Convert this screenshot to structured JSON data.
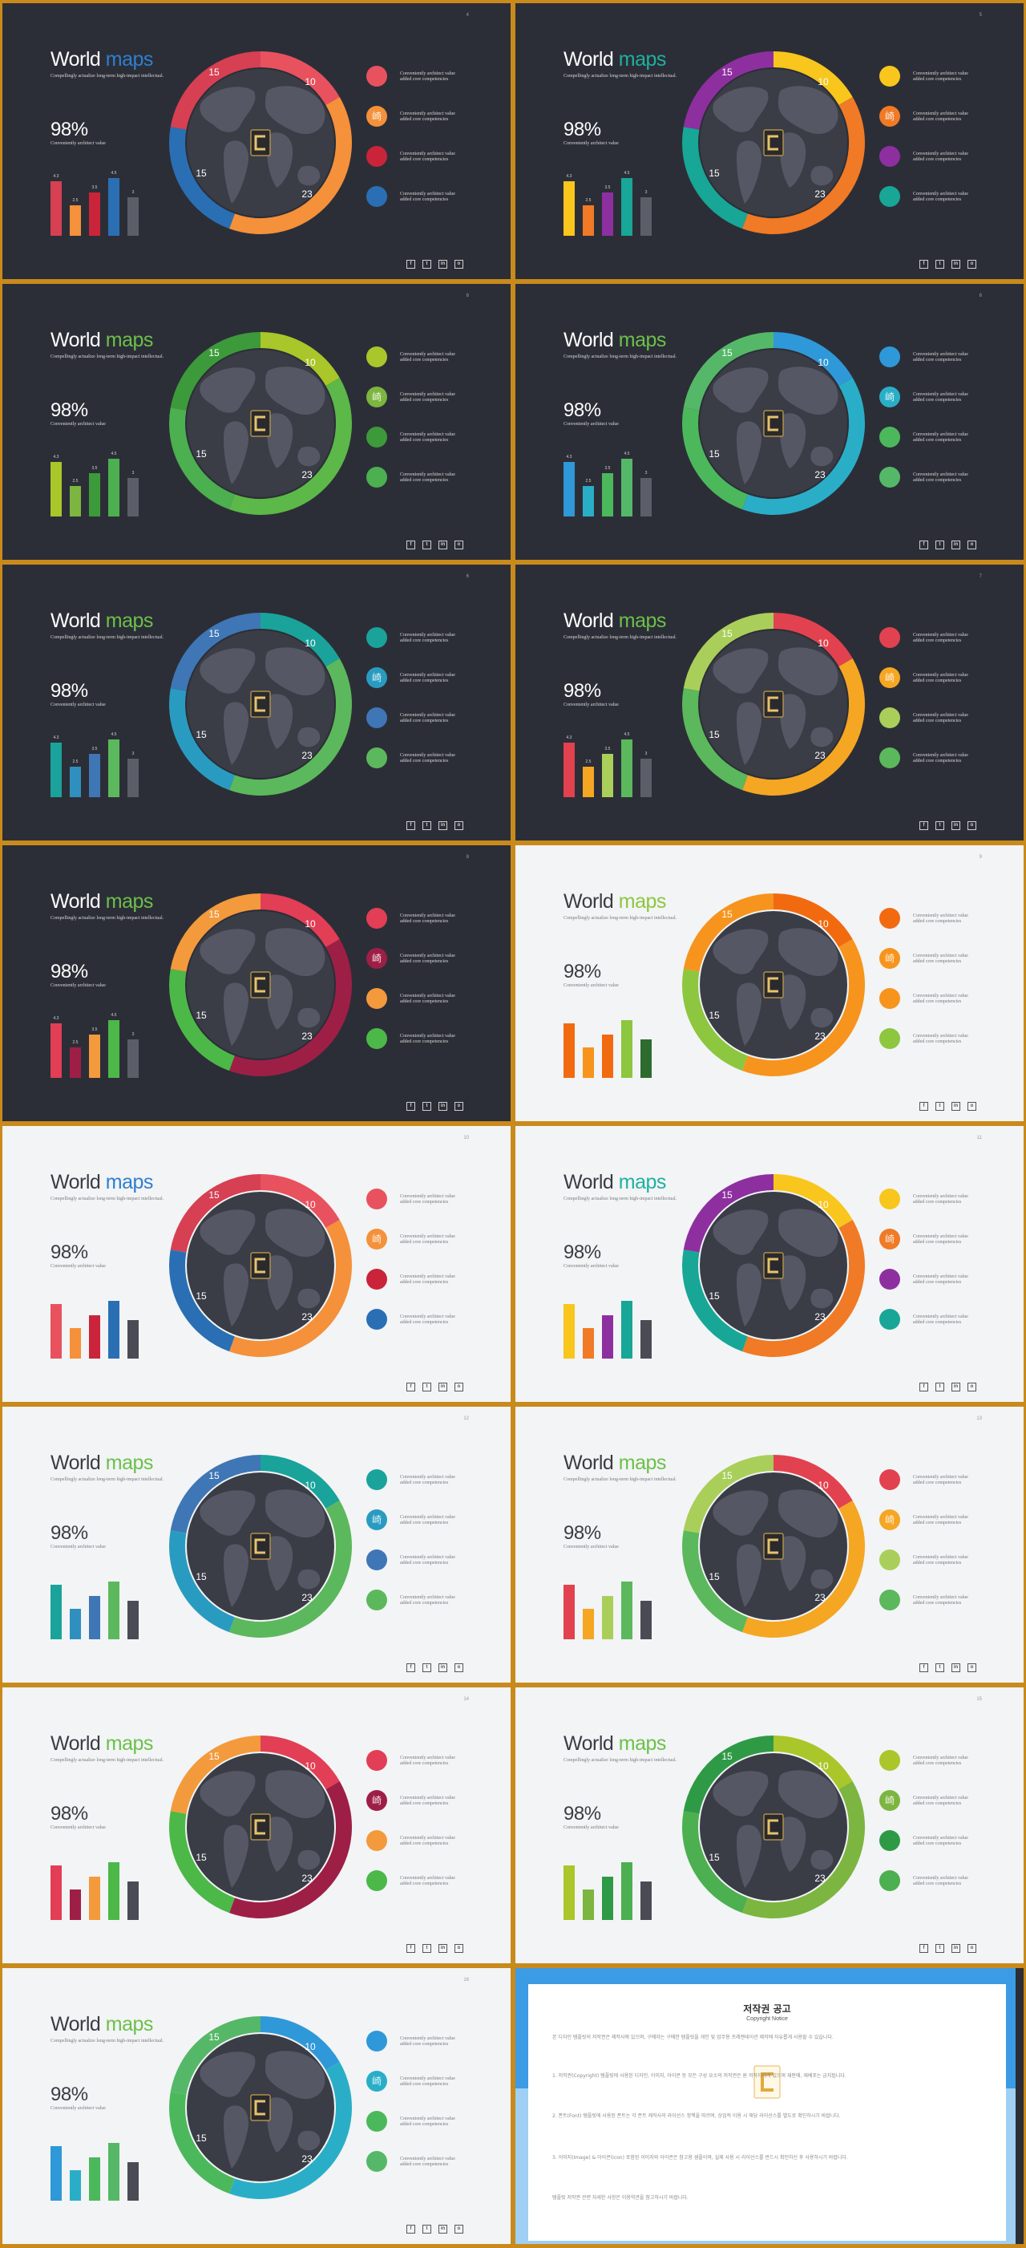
{
  "common": {
    "title_word1": "World",
    "title_word2": "maps",
    "subtitle": "Compellingly actualize long-term high-impact intellectual.",
    "percent": "98%",
    "percent_label": "Conveniently architect value",
    "legend_line1": "Conveniently architect value",
    "legend_line2": "added core competencies",
    "donut_labels": [
      "15",
      "10",
      "15",
      "23"
    ],
    "bar_values": [
      "4.3",
      "2.5",
      "3.5",
      "4.5",
      "3"
    ],
    "social_labels": [
      "f",
      "t",
      "in",
      "o"
    ],
    "legend_glyph": "崎"
  },
  "slides": [
    {
      "page": "4",
      "theme": "dark",
      "accent": "#2f7fd0",
      "ring": [
        "#d64052",
        "#e8525e",
        "#f4913a",
        "#2a6fb4"
      ],
      "bars": [
        "#d64052",
        "#f4913a",
        "#c9243a",
        "#2a6fb4",
        "#5b5e68"
      ],
      "legend": [
        "#e8525e",
        "#f4913a",
        "#c9243a",
        "#2a6fb4"
      ]
    },
    {
      "page": "5",
      "theme": "dark",
      "accent": "#1fb0a0",
      "ring": [
        "#8e2fa0",
        "#f8c61c",
        "#f07a25",
        "#18a697"
      ],
      "bars": [
        "#f8c61c",
        "#f07a25",
        "#8e2fa0",
        "#18a697",
        "#5b5e68"
      ],
      "legend": [
        "#f8c61c",
        "#f07a25",
        "#8e2fa0",
        "#18a697"
      ]
    },
    {
      "page": "6",
      "theme": "dark",
      "accent": "#6cc04a",
      "ring": [
        "#3c9a3a",
        "#a9c62a",
        "#5cb848",
        "#4caf50"
      ],
      "bars": [
        "#a9c62a",
        "#7cb540",
        "#3c9a3a",
        "#4caf50",
        "#5b5e68"
      ],
      "legend": [
        "#a9c62a",
        "#7cb540",
        "#3c9a3a",
        "#4caf50"
      ]
    },
    {
      "page": "6",
      "theme": "dark",
      "accent": "#6cc04a",
      "ring": [
        "#55b868",
        "#2f98d8",
        "#2aaec8",
        "#4cb85c"
      ],
      "bars": [
        "#2f98d8",
        "#2aaec8",
        "#4cb85c",
        "#55b868",
        "#5b5e68"
      ],
      "legend": [
        "#2f98d8",
        "#2aaec8",
        "#4cb85c",
        "#55b868"
      ]
    },
    {
      "page": "6",
      "theme": "dark",
      "accent": "#6cc04a",
      "ring": [
        "#3f76b5",
        "#1aa39a",
        "#5cb85c",
        "#2a9bc0"
      ],
      "bars": [
        "#1aa39a",
        "#2f8fbf",
        "#3f76b5",
        "#5cb85c",
        "#5b5e68"
      ],
      "legend": [
        "#1aa39a",
        "#2a9bc0",
        "#3f76b5",
        "#5cb85c"
      ]
    },
    {
      "page": "7",
      "theme": "dark",
      "accent": "#6cc04a",
      "ring": [
        "#a9cf5a",
        "#e2424f",
        "#f5a623",
        "#5bb85c"
      ],
      "bars": [
        "#e2424f",
        "#f5a623",
        "#a9cf5a",
        "#5bb85c",
        "#5b5e68"
      ],
      "legend": [
        "#e2424f",
        "#f5a623",
        "#a9cf5a",
        "#5bb85c"
      ]
    },
    {
      "page": "8",
      "theme": "dark",
      "accent": "#6cc04a",
      "ring": [
        "#f39a3c",
        "#e23e55",
        "#9e1f46",
        "#4cb848"
      ],
      "bars": [
        "#e23e55",
        "#9e1f46",
        "#f39a3c",
        "#4cb848",
        "#5b5e68"
      ],
      "legend": [
        "#e23e55",
        "#9e1f46",
        "#f39a3c",
        "#4cb848"
      ]
    },
    {
      "page": "9",
      "theme": "light",
      "accent": "#8dc63f",
      "ring": [
        "#f7941d",
        "#f26a10",
        "#f7941d",
        "#8dc63f"
      ],
      "bars": [
        "#f26a10",
        "#f7941d",
        "#f26a10",
        "#8dc63f",
        "#2e6b2f"
      ],
      "legend": [
        "#f26a10",
        "#f7941d",
        "#f7941d",
        "#8dc63f"
      ]
    },
    {
      "page": "10",
      "theme": "light",
      "accent": "#2f7fd0",
      "ring": [
        "#d64052",
        "#e8525e",
        "#f4913a",
        "#2a6fb4"
      ],
      "bars": [
        "#e8525e",
        "#f4913a",
        "#c9243a",
        "#2a6fb4",
        "#4a4c55"
      ],
      "legend": [
        "#e8525e",
        "#f4913a",
        "#c9243a",
        "#2a6fb4"
      ]
    },
    {
      "page": "11",
      "theme": "light",
      "accent": "#1fb0a0",
      "ring": [
        "#8e2fa0",
        "#f8c61c",
        "#f07a25",
        "#18a697"
      ],
      "bars": [
        "#f8c61c",
        "#f07a25",
        "#8e2fa0",
        "#18a697",
        "#4a4c55"
      ],
      "legend": [
        "#f8c61c",
        "#f07a25",
        "#8e2fa0",
        "#18a697"
      ]
    },
    {
      "page": "12",
      "theme": "light",
      "accent": "#6cc04a",
      "ring": [
        "#3f76b5",
        "#1aa39a",
        "#5cb85c",
        "#2a9bc0"
      ],
      "bars": [
        "#1aa39a",
        "#2f8fbf",
        "#3f76b5",
        "#5cb85c",
        "#4a4c55"
      ],
      "legend": [
        "#1aa39a",
        "#2a9bc0",
        "#3f76b5",
        "#5cb85c"
      ]
    },
    {
      "page": "13",
      "theme": "light",
      "accent": "#6cc04a",
      "ring": [
        "#a9cf5a",
        "#e2424f",
        "#f5a623",
        "#5bb85c"
      ],
      "bars": [
        "#e2424f",
        "#f5a623",
        "#a9cf5a",
        "#5bb85c",
        "#4a4c55"
      ],
      "legend": [
        "#e2424f",
        "#f5a623",
        "#a9cf5a",
        "#5bb85c"
      ]
    },
    {
      "page": "14",
      "theme": "light",
      "accent": "#6cc04a",
      "ring": [
        "#f39a3c",
        "#e23e55",
        "#9e1f46",
        "#4cb848"
      ],
      "bars": [
        "#e23e55",
        "#9e1f46",
        "#f39a3c",
        "#4cb848",
        "#4a4c55"
      ],
      "legend": [
        "#e23e55",
        "#9e1f46",
        "#f39a3c",
        "#4cb848"
      ]
    },
    {
      "page": "15",
      "theme": "light",
      "accent": "#6cc04a",
      "ring": [
        "#2f9a46",
        "#a9c62a",
        "#7cb540",
        "#4caf50"
      ],
      "bars": [
        "#a9c62a",
        "#7cb540",
        "#2f9a46",
        "#4caf50",
        "#4a4c55"
      ],
      "legend": [
        "#a9c62a",
        "#7cb540",
        "#2f9a46",
        "#4caf50"
      ]
    },
    {
      "page": "16",
      "theme": "light",
      "accent": "#6cc04a",
      "ring": [
        "#55b868",
        "#2f98d8",
        "#2aaec8",
        "#4cb85c"
      ],
      "bars": [
        "#2f98d8",
        "#2aaec8",
        "#4cb85c",
        "#55b868",
        "#4a4c55"
      ],
      "legend": [
        "#2f98d8",
        "#2aaec8",
        "#4cb85c",
        "#55b868"
      ]
    }
  ],
  "copyright": {
    "title": "저작권 공고",
    "subtitle": "Copyright Notice",
    "paragraphs": [
      "본 디자인 템플릿의 저작권은 제작사에 있으며, 구매자는 구매한 템플릿을 개인 및 업무용 프레젠테이션 제작에 자유롭게 사용할 수 있습니다.",
      "1. 저작권(Copyright) 템플릿에 사용된 디자인, 이미지, 아이콘 등 모든 구성 요소의 저작권은 원 저작자에게 있으며 재판매, 재배포는 금지됩니다.",
      "2. 폰트(Font) 템플릿에 사용된 폰트는 각 폰트 제작사의 라이선스 정책을 따르며, 상업적 이용 시 해당 라이선스를 별도로 확인하시기 바랍니다.",
      "3. 이미지(Image) & 아이콘(Icon) 포함된 이미지와 아이콘은 참고용 샘플이며, 실제 사용 시 라이선스를 반드시 확인하신 후 사용하시기 바랍니다.",
      "템플릿 저작권 관련 자세한 사항은 이용약관을 참고하시기 바랍니다."
    ]
  }
}
